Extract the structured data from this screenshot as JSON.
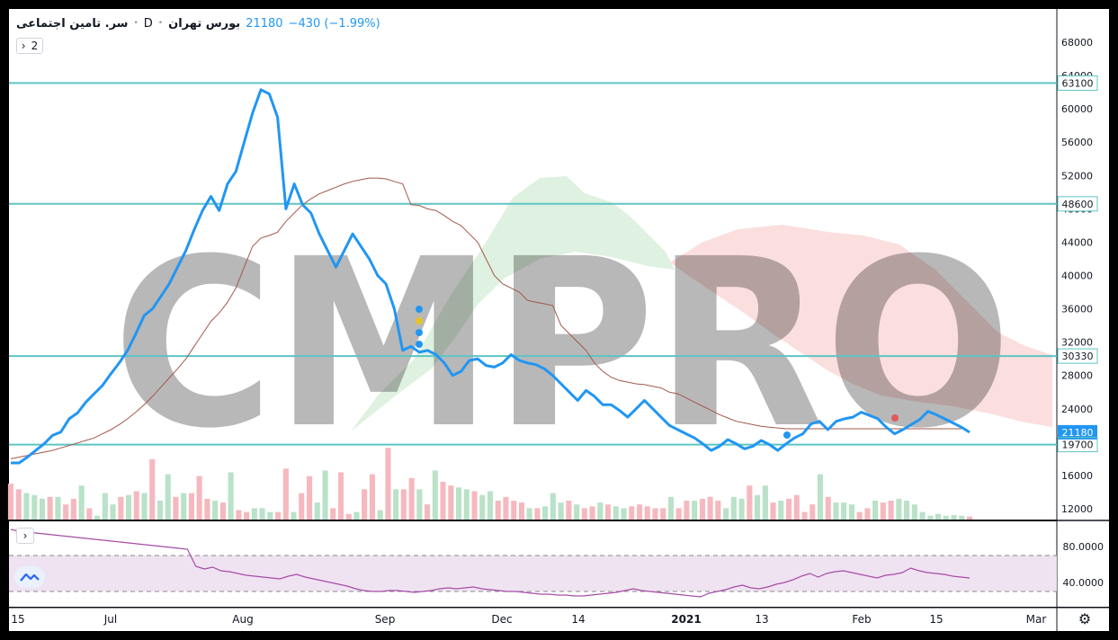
{
  "legend": {
    "symbol": "سر. تامین اجتماعی",
    "interval": "D",
    "exchange": "بورس تهران",
    "last": "21180",
    "change": "−430 (−1.99%)",
    "indicator_count": "2"
  },
  "watermark": "CMPRO",
  "colors": {
    "price_line": "#2196f3",
    "ma_line": "#a0594b",
    "level_line": "#5ec4c4",
    "cloud_green": "#d4ecd6",
    "cloud_red": "#fad6d6",
    "volume_up": "#b9e2c8",
    "volume_down": "#f6b8bf",
    "rsi_line": "#a64ca6",
    "rsi_band": "#ede0f0"
  },
  "chart_data": {
    "type": "line",
    "ylim": [
      10000,
      70000
    ],
    "y_ticks": [
      12000,
      16000,
      20000,
      24000,
      28000,
      32000,
      36000,
      40000,
      44000,
      48000,
      52000,
      56000,
      60000,
      64000,
      68000
    ],
    "x_ticks": [
      "15",
      "Jul",
      "Aug",
      "Sep",
      "Dec",
      "14",
      "2021",
      "13",
      "Feb",
      "15",
      "Mar"
    ],
    "levels": [
      63100,
      48600,
      30330,
      19700
    ],
    "last_price": 21180,
    "series": [
      {
        "values": [
          17500,
          17500,
          18200,
          19000,
          19800,
          20800,
          21200,
          22800,
          23500,
          24800,
          25800,
          26800,
          28200,
          29500,
          31000,
          33000,
          35200,
          36000,
          37500,
          39000,
          41000,
          43000,
          45500,
          47800,
          49500,
          47800,
          51000,
          52500,
          56000,
          59500,
          62300,
          61800,
          59000,
          48000,
          51000,
          48500,
          47500,
          45000,
          43000,
          41000,
          43000,
          45000,
          43500,
          42000,
          40000,
          39000,
          36000,
          31000,
          31500,
          30800,
          31000,
          30500,
          29500,
          28000,
          28500,
          29800,
          30000,
          29200,
          29000,
          29500,
          30500,
          29800,
          29500,
          29300,
          28800,
          28000,
          27000,
          26000,
          25000,
          26200,
          25500,
          24500,
          24500,
          23800,
          23000,
          24000,
          25000,
          24000,
          23000,
          22000,
          21500,
          21000,
          20500,
          19800,
          19000,
          19500,
          20300,
          19800,
          19200,
          19500,
          20200,
          19700,
          19000,
          19800,
          20500,
          21000,
          22200,
          22500,
          21500,
          22500,
          22800,
          23000,
          23600,
          23200,
          22800,
          21800,
          21000,
          21500,
          22100,
          22700,
          23700,
          23300,
          22800,
          22300,
          21800,
          21180
        ]
      },
      {
        "values": [
          18000,
          18200,
          18400,
          18600,
          18800,
          19000,
          19300,
          19600,
          19900,
          20200,
          20500,
          21000,
          21500,
          22100,
          22800,
          23600,
          24500,
          25500,
          26600,
          27700,
          28800,
          30000,
          31500,
          33000,
          34500,
          35500,
          36800,
          38500,
          41000,
          43500,
          44500,
          44800,
          45200,
          46500,
          47500,
          48500,
          49200,
          49800,
          50200,
          50600,
          51000,
          51300,
          51500,
          51700,
          51700,
          51600,
          51300,
          51000,
          48500,
          48400,
          48000,
          47800,
          47200,
          46500,
          46000,
          45000,
          44000,
          42000,
          40000,
          39000,
          38500,
          38000,
          37000,
          36800,
          36600,
          36400,
          34000,
          33000,
          32000,
          31000,
          29500,
          28500,
          27800,
          27400,
          27200,
          27000,
          26900,
          26700,
          26500,
          26000,
          25800,
          25300,
          24800,
          24300,
          23800,
          23300,
          22900,
          22500,
          22300,
          22100,
          21900,
          21800,
          21700,
          21600,
          21600,
          21600,
          21600,
          21600,
          21600,
          21600,
          21600,
          21600,
          21600,
          21600,
          21600,
          21600,
          21600,
          21600,
          21600,
          21600,
          21600,
          21600,
          21600,
          21600,
          21600
        ]
      }
    ],
    "volume_ratio": [
      0.95,
      0.8,
      0.7,
      0.65,
      0.55,
      0.6,
      0.6,
      0.4,
      0.55,
      0.9,
      0.3,
      0.1,
      0.7,
      0.4,
      0.6,
      0.65,
      0.75,
      0.7,
      1.6,
      0.5,
      1.2,
      0.6,
      0.7,
      0.7,
      1.15,
      0.55,
      0.5,
      0.45,
      1.25,
      0.25,
      0.2,
      0.3,
      0.3,
      0.2,
      0.2,
      1.35,
      0.2,
      0.7,
      1.15,
      0.45,
      1.3,
      0.3,
      1.25,
      0.15,
      0.2,
      0.8,
      1.2,
      0.25,
      1.9,
      0.8,
      0.8,
      1.1,
      0.8,
      0.4,
      1.3,
      1.0,
      0.9,
      0.85,
      0.8,
      0.75,
      0.65,
      0.75,
      0.5,
      0.6,
      0.5,
      0.45,
      0.3,
      0.3,
      0.35,
      0.7,
      0.45,
      0.5,
      0.4,
      0.3,
      0.35,
      0.45,
      0.4,
      0.35,
      0.3,
      0.35,
      0.4,
      0.35,
      0.3,
      0.3,
      0.6,
      0.3,
      0.5,
      0.5,
      0.55,
      0.6,
      0.5,
      0.3,
      0.6,
      0.55,
      0.9,
      0.65,
      0.9,
      0.45,
      0.5,
      0.55,
      0.65,
      0.2,
      0.4,
      1.2,
      0.6,
      0.45,
      0.45,
      0.4,
      0.2,
      0.3,
      0.5,
      0.45,
      0.5,
      0.55,
      0.5,
      0.4,
      0.2,
      0.1,
      0.15,
      0.1,
      0.12,
      0.1,
      0.08
    ],
    "volume_up": [
      false,
      false,
      true,
      true,
      true,
      false,
      true,
      false,
      false,
      true,
      false,
      true,
      true,
      true,
      false,
      true,
      false,
      true,
      false,
      true,
      true,
      false,
      true,
      false,
      false,
      false,
      true,
      false,
      true,
      false,
      false,
      true,
      true,
      true,
      false,
      false,
      true,
      false,
      false,
      true,
      true,
      false,
      false,
      false,
      true,
      false,
      false,
      true,
      false,
      true,
      false,
      false,
      true,
      false,
      true,
      false,
      false,
      true,
      true,
      false,
      true,
      true,
      false,
      false,
      false,
      false,
      true,
      false,
      true,
      true,
      true,
      false,
      true,
      false,
      false,
      true,
      false,
      true,
      true,
      false,
      false,
      false,
      false,
      false,
      true,
      false,
      false,
      true,
      false,
      false,
      false,
      true,
      true,
      true,
      false,
      true,
      true,
      false,
      true,
      false,
      false,
      false,
      false,
      true,
      false,
      true,
      true,
      true,
      false,
      false,
      true,
      false,
      false,
      true,
      true,
      true,
      true,
      true,
      true,
      true,
      true,
      true
    ],
    "rsi": {
      "levels": [
        70,
        30
      ],
      "y_ticks": [
        80,
        40
      ],
      "y_tick_labels": [
        "80.0000",
        "40.0000"
      ],
      "ylim": [
        15,
        100
      ],
      "values": [
        99,
        97,
        96,
        95,
        94,
        93,
        92,
        91,
        90,
        89,
        88,
        87,
        86,
        85,
        84,
        83,
        82,
        81,
        80,
        79,
        78,
        77,
        58,
        55,
        57,
        53,
        52,
        50,
        48,
        47,
        46,
        45,
        44,
        47,
        49,
        46,
        44,
        42,
        40,
        38,
        36,
        33,
        31,
        30,
        30,
        31,
        31,
        30,
        29,
        30,
        31,
        33,
        34,
        33,
        34,
        35,
        33,
        32,
        31,
        30,
        30,
        29,
        28,
        27,
        27,
        26,
        26,
        25,
        25,
        26,
        27,
        28,
        29,
        31,
        33,
        31,
        30,
        29,
        28,
        27,
        26,
        25,
        24,
        28,
        30,
        32,
        35,
        37,
        34,
        33,
        35,
        38,
        40,
        43,
        47,
        50,
        46,
        50,
        52,
        53,
        51,
        49,
        47,
        45,
        48,
        49,
        51,
        56,
        53,
        51,
        50,
        49,
        47,
        46,
        45
      ]
    }
  }
}
